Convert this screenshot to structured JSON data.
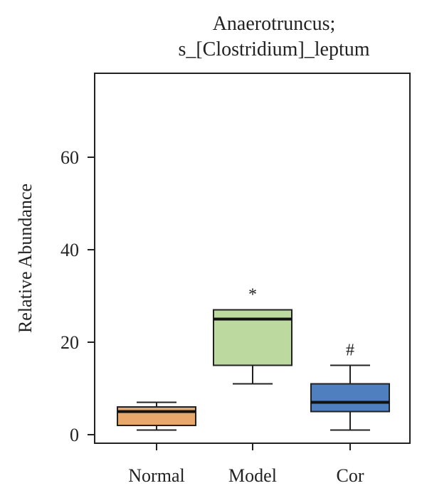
{
  "chart_data": {
    "type": "box",
    "title_lines": [
      "Anaerotruncus;",
      "s_[Clostridium]_leptum"
    ],
    "xlabel": "",
    "ylabel": "Relative Abundance",
    "ylim": [
      -2,
      75
    ],
    "yticks": [
      0,
      20,
      40,
      60
    ],
    "grid": false,
    "categories": [
      "Normal",
      "Model",
      "Cor"
    ],
    "boxes": [
      {
        "category": "Normal",
        "min": 1,
        "q1": 2,
        "median": 5,
        "q3": 6,
        "max": 7,
        "color": "#E8A86C",
        "annotation": ""
      },
      {
        "category": "Model",
        "min": 11,
        "q1": 15,
        "median": 25,
        "q3": 27,
        "max": 27,
        "color": "#BCD9A0",
        "annotation": "*"
      },
      {
        "category": "Cor",
        "min": 1,
        "q1": 5,
        "median": 7,
        "q3": 11,
        "max": 15,
        "color": "#4F7FBF",
        "annotation": "#"
      }
    ]
  }
}
